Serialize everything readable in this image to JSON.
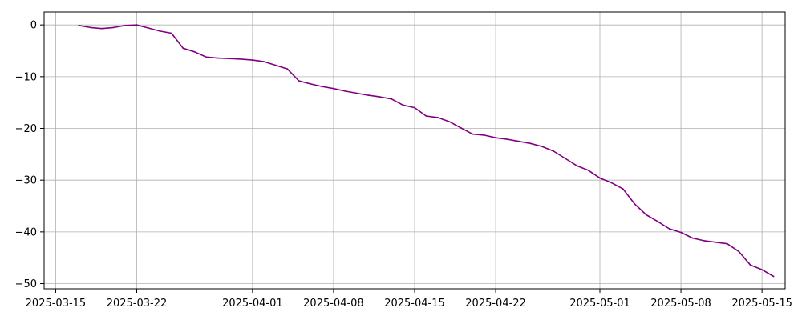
{
  "chart_data": {
    "type": "line",
    "title": "",
    "xlabel": "",
    "ylabel": "",
    "grid": true,
    "legend": "none",
    "line_color": "#800080",
    "grid_color": "#b0b0b0",
    "x_type": "date",
    "xlim": [
      "2025-03-14",
      "2025-05-17"
    ],
    "ylim": [
      -51,
      2.5
    ],
    "x_ticks": [
      "2025-03-15",
      "2025-03-22",
      "2025-04-01",
      "2025-04-08",
      "2025-04-15",
      "2025-04-22",
      "2025-05-01",
      "2025-05-08",
      "2025-05-15"
    ],
    "y_ticks": [
      0,
      -10,
      -20,
      -30,
      -40,
      -50
    ],
    "series": [
      {
        "x": [
          "2025-03-17",
          "2025-03-18",
          "2025-03-19",
          "2025-03-20",
          "2025-03-21",
          "2025-03-22",
          "2025-03-23",
          "2025-03-24",
          "2025-03-25",
          "2025-03-26",
          "2025-03-27",
          "2025-03-28",
          "2025-03-29",
          "2025-03-30",
          "2025-03-31",
          "2025-04-01",
          "2025-04-02",
          "2025-04-03",
          "2025-04-04",
          "2025-04-05",
          "2025-04-06",
          "2025-04-07",
          "2025-04-08",
          "2025-04-09",
          "2025-04-10",
          "2025-04-11",
          "2025-04-12",
          "2025-04-13",
          "2025-04-14",
          "2025-04-15",
          "2025-04-16",
          "2025-04-17",
          "2025-04-18",
          "2025-04-19",
          "2025-04-20",
          "2025-04-21",
          "2025-04-22",
          "2025-04-23",
          "2025-04-24",
          "2025-04-25",
          "2025-04-26",
          "2025-04-27",
          "2025-04-28",
          "2025-04-29",
          "2025-04-30",
          "2025-05-01",
          "2025-05-02",
          "2025-05-03",
          "2025-05-04",
          "2025-05-05",
          "2025-05-06",
          "2025-05-07",
          "2025-05-08",
          "2025-05-09",
          "2025-05-10",
          "2025-05-11",
          "2025-05-12",
          "2025-05-13",
          "2025-05-14",
          "2025-05-15",
          "2025-05-16"
        ],
        "values": [
          -0.1,
          -0.5,
          -0.7,
          -0.5,
          -0.1,
          0.0,
          -0.6,
          -1.2,
          -1.6,
          -4.5,
          -5.2,
          -6.2,
          -6.4,
          -6.5,
          -6.6,
          -6.8,
          -7.1,
          -7.8,
          -8.5,
          -10.8,
          -11.4,
          -11.9,
          -12.3,
          -12.8,
          -13.2,
          -13.6,
          -13.9,
          -14.3,
          -15.5,
          -16.0,
          -17.6,
          -17.9,
          -18.7,
          -19.9,
          -21.1,
          -21.3,
          -21.8,
          -22.1,
          -22.5,
          -22.9,
          -23.5,
          -24.4,
          -25.8,
          -27.2,
          -28.1,
          -29.6,
          -30.5,
          -31.7,
          -34.6,
          -36.7,
          -38.0,
          -39.4,
          -40.1,
          -41.2,
          -41.7,
          -42.0,
          -42.3,
          -43.8,
          -46.4,
          -47.3,
          -48.6
        ]
      }
    ]
  }
}
